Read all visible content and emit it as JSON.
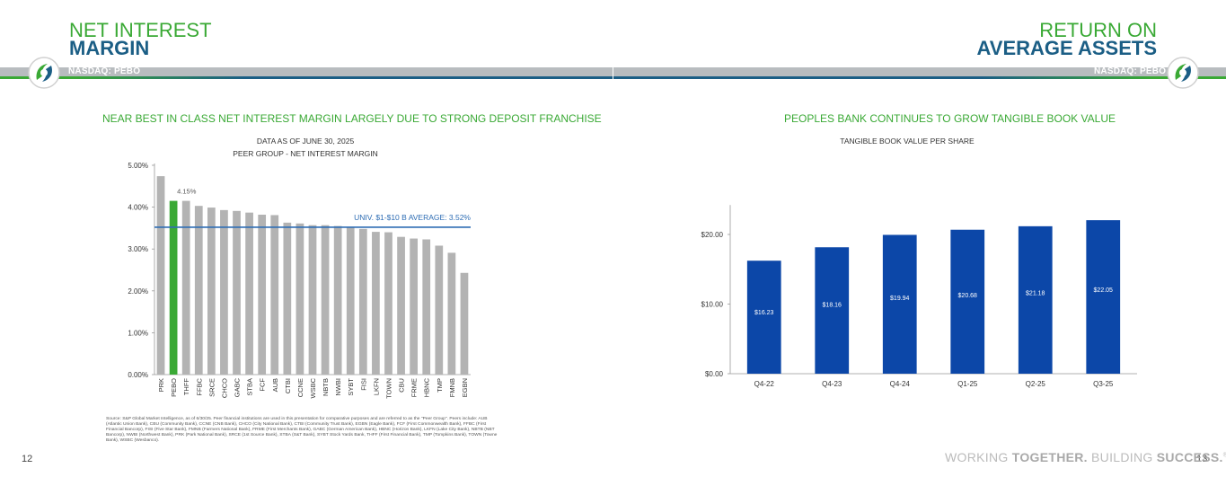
{
  "left_page": {
    "title_line1": "NET INTEREST",
    "title_line2": "MARGIN",
    "ticker": "NASDAQ: PEBO",
    "subheading": "NEAR BEST IN CLASS NET INTEREST MARGIN LARGELY DUE TO STRONG DEPOSIT FRANCHISE",
    "page_number": "12",
    "source_note": "Source: S&P Global Market Intelligence, as of 6/30/25. Peer financial institutions are used in this presentation for comparative purposes and are referred to as the \"Peer Group\". Peers include: AUB (Atlantic Union Bank), CBU (Community Bank), CCNE (CNB Bank), CHCO (City National Bank), CTBI (Community Trust Bank), EGBN (Eagle Bank), FCF (First Commonwealth Bank), FFBC (First Financial Bancorp), FISI (Five Star Bank), FMNB (Farmers National Bank), FRME (First Merchants Bank), GABC (German American Bank), HBNC (Horizon Bank), LKFN (Lake City Bank), NBTB (NBT Bancorp), NWBI (Northwest Bank), PRK (Park National Bank), SRCE (1st Source Bank), STBA (S&T Bank), SYBT Stock Yards Bank, THFF (First Financial Bank), TMP (Tompkins Bank), TOWN (Towne Bank), WSBC (Wesbanco)."
  },
  "right_page": {
    "title_line1": "RETURN ON",
    "title_line2": "AVERAGE ASSETS",
    "ticker": "NASDAQ: PEBO",
    "subheading": "PEOPLES BANK CONTINUES TO GROW TANGIBLE BOOK VALUE",
    "page_number": "13",
    "tagline_light1": "WORKING ",
    "tagline_bold1": "TOGETHER.",
    "tagline_light2": " BUILDING ",
    "tagline_bold2": "SUCCESS.",
    "tagline_reg": "®"
  },
  "colors": {
    "green": "#3aa935",
    "blue_title": "#1b5e85",
    "bar_blue": "#0c47a8",
    "bar_gray": "#b3b3b3",
    "avg_line": "#2e6db4"
  },
  "chart_data": [
    {
      "type": "bar",
      "title": "DATA AS OF JUNE 30, 2025",
      "subtitle": "PEER GROUP - NET INTEREST MARGIN",
      "categories": [
        "PRK",
        "PEBO",
        "THFF",
        "FFBC",
        "SRCE",
        "CHCO",
        "GABC",
        "STBA",
        "FCF",
        "AUB",
        "CTBI",
        "CCNE",
        "WSBC",
        "NBTB",
        "NWBI",
        "SYBT",
        "FISI",
        "LKFN",
        "TOWN",
        "CBU",
        "FRME",
        "HBNC",
        "TMP",
        "FMNB",
        "EGBN"
      ],
      "values": [
        4.74,
        4.15,
        4.15,
        4.03,
        3.99,
        3.93,
        3.91,
        3.87,
        3.82,
        3.81,
        3.63,
        3.61,
        3.57,
        3.57,
        3.55,
        3.51,
        3.48,
        3.41,
        3.4,
        3.29,
        3.25,
        3.23,
        3.08,
        2.91,
        2.43
      ],
      "highlight": "PEBO",
      "highlight_label": "4.15%",
      "ylim": [
        0,
        5
      ],
      "yticks": [
        "0.00%",
        "1.00%",
        "2.00%",
        "3.00%",
        "4.00%",
        "5.00%"
      ],
      "reference_line": {
        "value": 3.52,
        "label": "UNIV. $1-$10 B AVERAGE: 3.52%"
      }
    },
    {
      "type": "bar",
      "title": "TANGIBLE BOOK VALUE PER SHARE",
      "categories": [
        "Q4-22",
        "Q4-23",
        "Q4-24",
        "Q1-25",
        "Q2-25",
        "Q3-25"
      ],
      "values": [
        16.23,
        18.16,
        19.94,
        20.68,
        21.18,
        22.05
      ],
      "data_labels": [
        "$16.23",
        "$18.16",
        "$19.94",
        "$20.68",
        "$21.18",
        "$22.05"
      ],
      "ylim": [
        0,
        25
      ],
      "yticks": [
        "$0.00",
        "$10.00",
        "$20.00"
      ]
    }
  ]
}
